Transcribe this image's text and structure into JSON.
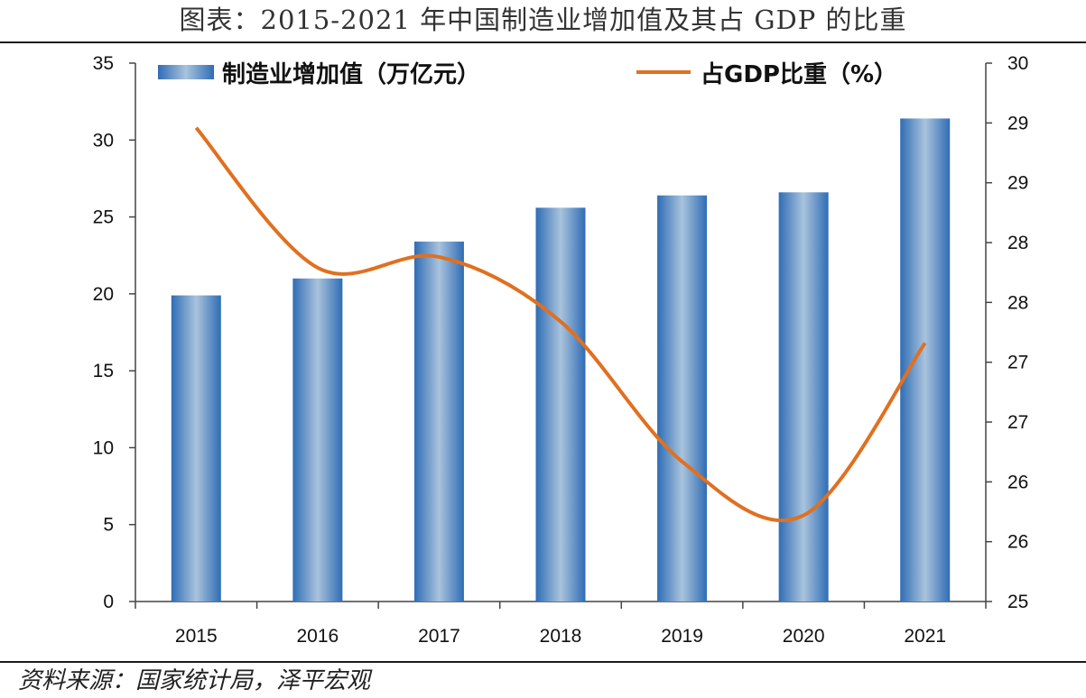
{
  "title": "图表：2015-2021 年中国制造业增加值及其占 GDP 的比重",
  "source": "资料来源：国家统计局，泽平宏观",
  "colors": {
    "bar_edge": "#2f6db5",
    "bar_center": "#a9c3dc",
    "line": "#e07020",
    "axis": "#444444"
  },
  "chart_data": {
    "type": "bar",
    "categories": [
      "2015",
      "2016",
      "2017",
      "2018",
      "2019",
      "2020",
      "2021"
    ],
    "series": [
      {
        "name": "制造业增加值（万亿元）",
        "type": "bar",
        "axis": "left",
        "values": [
          19.9,
          21.0,
          23.4,
          25.6,
          26.4,
          26.6,
          31.4
        ]
      },
      {
        "name": "占GDP比重（%）",
        "type": "line",
        "axis": "right",
        "values": [
          29.4,
          28.1,
          28.2,
          27.6,
          26.3,
          25.8,
          27.4
        ]
      }
    ],
    "ylim_left": [
      0,
      35
    ],
    "yticks_left": [
      "0",
      "5",
      "10",
      "15",
      "20",
      "25",
      "30",
      "35"
    ],
    "ylim_right": [
      25,
      30
    ],
    "yticks_right": [
      "25",
      "26",
      "26",
      "27",
      "27",
      "28",
      "28",
      "29",
      "29",
      "30"
    ],
    "grid": false,
    "legend": "top"
  }
}
